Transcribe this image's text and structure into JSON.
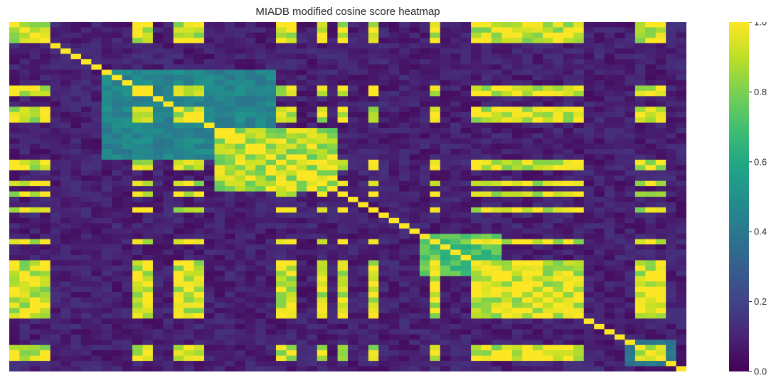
{
  "chart_data": {
    "type": "heatmap",
    "title": "MIADB modified cosine score heatmap",
    "xlabel": "",
    "ylabel": "",
    "colormap": "viridis",
    "value_range": [
      0.0,
      1.0
    ],
    "colorbar_ticks": [
      "0.0",
      "0.2",
      "0.4",
      "0.6",
      "0.8",
      "1.0"
    ],
    "n_rows": 66,
    "n_cols": 66,
    "diagonal_value": 1.0,
    "clusters": [
      {
        "indices": [
          0,
          1,
          2,
          3,
          12,
          13,
          16,
          17,
          18,
          26,
          27,
          30,
          32,
          35,
          41,
          45,
          46,
          47,
          48,
          49,
          50,
          51,
          52,
          53,
          54,
          55,
          61,
          62,
          63
        ],
        "within": 0.93
      },
      {
        "indices": [
          20,
          21,
          22,
          23,
          24,
          25,
          26,
          27,
          28,
          29,
          30,
          31
        ],
        "within": 0.88
      },
      {
        "indices": [
          40,
          41,
          42,
          43,
          44,
          45,
          46,
          47
        ],
        "within": 0.72
      },
      {
        "indices": [
          60,
          61,
          62,
          63,
          64
        ],
        "within": 0.38
      },
      {
        "indices": [
          9,
          10,
          11,
          12,
          13,
          14,
          15,
          16,
          17,
          18,
          19,
          20,
          21,
          22,
          23,
          24,
          25
        ],
        "within": 0.45
      }
    ],
    "background_value": 0.08
  }
}
